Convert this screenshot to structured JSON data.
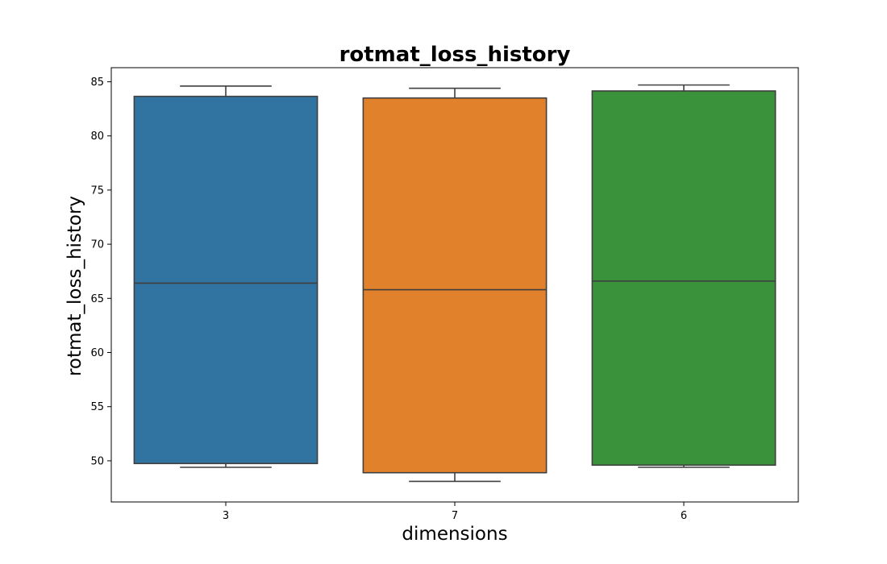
{
  "chart_data": {
    "type": "box",
    "title": "rotmat_loss_history",
    "xlabel": "dimensions",
    "ylabel": "rotmat_loss_history",
    "categories": [
      "3",
      "7",
      "6"
    ],
    "boxes": [
      {
        "category": "3",
        "whisker_low": 49.4,
        "q1": 49.75,
        "median": 66.4,
        "q3": 83.65,
        "whisker_high": 84.6,
        "color": "#3274a1"
      },
      {
        "category": "7",
        "whisker_low": 48.1,
        "q1": 48.9,
        "median": 65.8,
        "q3": 83.5,
        "whisker_high": 84.4,
        "color": "#e1812c"
      },
      {
        "category": "6",
        "whisker_low": 49.4,
        "q1": 49.6,
        "median": 66.6,
        "q3": 84.15,
        "whisker_high": 84.7,
        "color": "#3a923a"
      }
    ],
    "yticks": [
      50,
      55,
      60,
      65,
      70,
      75,
      80,
      85
    ],
    "ylim": [
      46.2,
      86.3
    ],
    "grid": false,
    "legend": "none"
  }
}
